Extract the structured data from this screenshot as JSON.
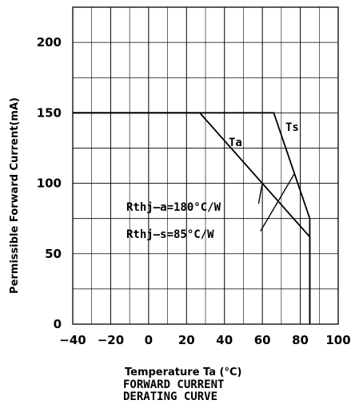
{
  "chart_data": {
    "type": "line",
    "title": "",
    "xlabel": "Temperature Ta (°C)",
    "ylabel": "Permissible Forward Current(mA)",
    "xlim": [
      -40,
      100
    ],
    "ylim": [
      0,
      225
    ],
    "x_ticks": [
      -40,
      -20,
      0,
      20,
      40,
      60,
      80,
      100
    ],
    "y_ticks": [
      0,
      50,
      100,
      150,
      200
    ],
    "x_tick_labels": [
      "−40",
      "−20",
      "0",
      "20",
      "40",
      "60",
      "80",
      "100"
    ],
    "y_tick_labels": [
      "0",
      "50",
      "100",
      "150",
      "200"
    ],
    "grid": true,
    "series": [
      {
        "name": "Ta",
        "x": [
          -40,
          27,
          85,
          85
        ],
        "y": [
          150,
          150,
          62,
          0
        ]
      },
      {
        "name": "Ts",
        "x": [
          -40,
          66,
          85,
          85
        ],
        "y": [
          150,
          150,
          75,
          0
        ]
      }
    ],
    "annotations": [
      {
        "id": "rthj-a",
        "text": "Rthj–a=180°C/W",
        "target_x": 60,
        "target_y": 100
      },
      {
        "id": "rthj-s",
        "text": "Rthj–s=85°C/W",
        "target_x": 77,
        "target_y": 107
      }
    ],
    "caption": [
      "FORWARD CURRENT",
      "DERATING CURVE"
    ]
  }
}
